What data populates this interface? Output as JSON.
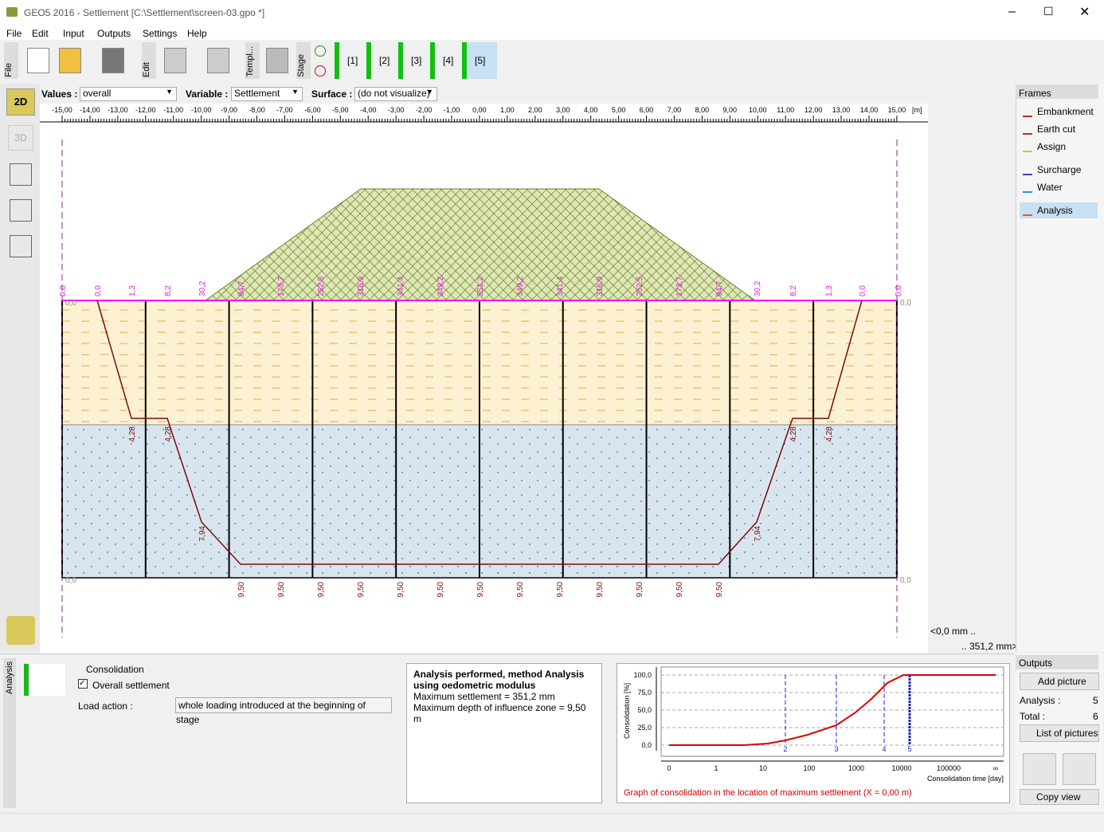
{
  "window": {
    "title": "GEO5 2016 - Settlement [C:\\Settlement\\screen-03.gpo *]"
  },
  "menu": [
    "File",
    "Edit",
    "Input",
    "Outputs",
    "Settings",
    "Help"
  ],
  "toolbar": {
    "file": "File",
    "edit": "Edit",
    "templates": "Templ...",
    "stage": "Stage",
    "stages": [
      "[1]",
      "[2]",
      "[3]",
      "[4]",
      "[5]"
    ]
  },
  "left_tools": [
    "2D",
    "3D"
  ],
  "options": {
    "values_label": "Values :",
    "values": "overall",
    "variable_label": "Variable :",
    "variable": "Settlement",
    "surface_label": "Surface :",
    "surface": "(do not visualize)"
  },
  "ruler": {
    "ticks": [
      "-15,00",
      "-14,00",
      "-13,00",
      "-12,00",
      "-11,00",
      "-10,00",
      "-9,00",
      "-8,00",
      "-7,00",
      "-6,00",
      "-5,00",
      "-4,00",
      "-3,00",
      "-2,00",
      "-1,00",
      "0,00",
      "1,00",
      "2,00",
      "3,00",
      "4,00",
      "5,00",
      "6,00",
      "7,00",
      "8,00",
      "9,00",
      "10,00",
      "11,00",
      "12,00",
      "13,00",
      "14,00",
      "15,00"
    ],
    "unit": "[m]"
  },
  "drawing": {
    "settlements": [
      "0,0",
      "0,0",
      "1,3",
      "8,2",
      "30,2",
      "94,7",
      "173,7",
      "252,5",
      "316,9",
      "341,4",
      "349,2",
      "351,2",
      "349,2",
      "341,4",
      "316,9",
      "252,5",
      "173,7",
      "94,7",
      "30,2",
      "8,2",
      "1,3",
      "0,0",
      "0,0"
    ],
    "depths": [
      "9,50",
      "9,50",
      "9,50",
      "9,50",
      "9,50",
      "9,50",
      "9,50",
      "9,50",
      "9,50",
      "9,50",
      "9,50",
      "9,50",
      "9,50"
    ],
    "layer_depths": [
      "4,28",
      "4,28",
      "4,28",
      "4,28"
    ],
    "bend_depths": [
      "7,94",
      "7,94"
    ],
    "edge_labels": [
      "0,0",
      "0,0",
      "0,0",
      "0,0"
    ]
  },
  "scale": {
    "min": "<0,0 mm ..",
    "max": ".. 351,2 mm>"
  },
  "frames": {
    "title": "Frames",
    "items": [
      "Embankment",
      "Earth cut",
      "Assign",
      "Surcharge",
      "Water",
      "Analysis"
    ]
  },
  "bottom": {
    "tab": "Analysis",
    "group": "Consolidation",
    "checkbox": "Overall settlement",
    "load_label": "Load action :",
    "load": "whole loading introduced at the beginning of stage"
  },
  "results": {
    "title": "Analysis performed, method Analysis using oedometric modulus",
    "lines": [
      "Maximum settlement = 351,2 mm",
      "Maximum depth of influence zone = 9,50 m"
    ]
  },
  "graph": {
    "y_label": "Consolidation [%]",
    "y_ticks": [
      "0,0",
      "25,0",
      "50,0",
      "75,0",
      "100,0"
    ],
    "x_ticks": [
      "0",
      "1",
      "10",
      "100",
      "1000",
      "10000",
      "100000",
      "∞"
    ],
    "x_label": "Consolidation time [day]",
    "stages": [
      "2",
      "3",
      "4",
      "5"
    ],
    "caption": "Graph of consolidation in the location of maximum settlement (X = 0,00 m)"
  },
  "outputs": {
    "title": "Outputs",
    "add": "Add picture",
    "analysis_label": "Analysis :",
    "analysis": "5",
    "total_label": "Total :",
    "total": "6",
    "list": "List of pictures",
    "copy": "Copy view"
  }
}
